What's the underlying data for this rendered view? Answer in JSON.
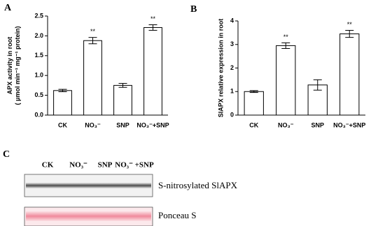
{
  "chart_data": [
    {
      "type": "bar",
      "panel": "A",
      "ylabel": [
        "APX activity in root",
        "( μmol min⁻¹ mg⁻¹ protein)"
      ],
      "categories": [
        "CK",
        "NO₃⁻",
        "SNP",
        "NO₃⁻+SNP"
      ],
      "series": [
        {
          "color": "#ffffff",
          "values": [
            0.62,
            1.88,
            0.75,
            2.21
          ],
          "errors": [
            0.03,
            0.08,
            0.05,
            0.07
          ]
        }
      ],
      "value_annotations": [
        null,
        "**",
        null,
        "**"
      ],
      "ylim": [
        0,
        2.5
      ],
      "yticks": [
        {
          "value": 0,
          "label": "0.0"
        },
        0.5,
        {
          "value": 1,
          "label": "1.0"
        },
        1.5,
        {
          "value": 2,
          "label": "2.0"
        },
        2.5
      ]
    },
    {
      "type": "bar",
      "panel": "B",
      "ylabel": [
        "SlAPX relative expression in root"
      ],
      "categories": [
        "CK",
        "NO₃⁻",
        "SNP",
        "NO₃⁻+SNP"
      ],
      "series": [
        {
          "color": "#ffffff",
          "values": [
            1.0,
            2.95,
            1.28,
            3.45
          ],
          "errors": [
            0.04,
            0.12,
            0.22,
            0.15
          ]
        }
      ],
      "value_annotations": [
        null,
        "**",
        null,
        "**"
      ],
      "ylim": [
        0,
        4
      ],
      "yticks": [
        0,
        1,
        2,
        3,
        4
      ]
    }
  ],
  "blot": {
    "panel": "C",
    "lanes": [
      "CK",
      "NO₃⁻",
      "SNP",
      "NO₃⁻ +SNP"
    ],
    "bands": [
      "S-nitrosylated SlAPX",
      "Ponceau S"
    ]
  }
}
